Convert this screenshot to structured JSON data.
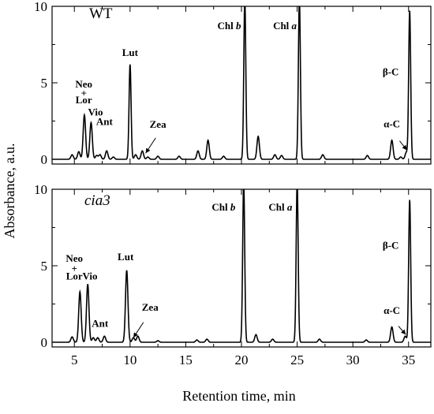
{
  "figure": {
    "y_axis_title": "Absorbance, a.u.",
    "x_axis_title": "Retention time, min"
  },
  "chart_data": [
    {
      "type": "line",
      "panel_label": "WT",
      "panel_label_italic": false,
      "xlim": [
        3,
        37
      ],
      "ylim": [
        0,
        10
      ],
      "x_ticks": [
        5,
        10,
        15,
        20,
        25,
        30,
        35
      ],
      "x_tick_labels": [],
      "y_ticks": [
        0,
        5,
        10
      ],
      "y_tick_labels": [
        "0",
        "5",
        "10"
      ],
      "series": [
        {
          "peaks": [
            {
              "x": 4.8,
              "y": 0.3
            },
            {
              "x": 5.4,
              "y": 0.5
            },
            {
              "x": 5.9,
              "y": 2.9
            },
            {
              "x": 6.5,
              "y": 2.4
            },
            {
              "x": 7.0,
              "y": 0.25
            },
            {
              "x": 7.3,
              "y": 0.3
            },
            {
              "x": 7.9,
              "y": 0.55
            },
            {
              "x": 8.5,
              "y": 0.15
            },
            {
              "x": 10.0,
              "y": 6.2
            },
            {
              "x": 10.5,
              "y": 0.3
            },
            {
              "x": 11.1,
              "y": 0.55
            },
            {
              "x": 11.6,
              "y": 0.15
            },
            {
              "x": 12.5,
              "y": 0.2
            },
            {
              "x": 14.4,
              "y": 0.2
            },
            {
              "x": 16.1,
              "y": 0.55
            },
            {
              "x": 17.0,
              "y": 1.25
            },
            {
              "x": 18.4,
              "y": 0.2
            },
            {
              "x": 20.3,
              "y": 10.5
            },
            {
              "x": 21.5,
              "y": 1.5
            },
            {
              "x": 23.0,
              "y": 0.3
            },
            {
              "x": 23.6,
              "y": 0.25
            },
            {
              "x": 25.2,
              "y": 10.5
            },
            {
              "x": 27.3,
              "y": 0.3
            },
            {
              "x": 31.3,
              "y": 0.25
            },
            {
              "x": 33.5,
              "y": 1.25
            },
            {
              "x": 34.3,
              "y": 0.15
            },
            {
              "x": 34.8,
              "y": 0.45
            },
            {
              "x": 35.1,
              "y": 9.7
            }
          ]
        }
      ],
      "annotations": [
        {
          "text": "Neo",
          "x": 5.85,
          "y": 4.7
        },
        {
          "text": "+",
          "x": 5.85,
          "y": 4.1
        },
        {
          "text": "Lor",
          "x": 5.85,
          "y": 3.65
        },
        {
          "text": "Vio",
          "x": 6.9,
          "y": 2.85
        },
        {
          "text": "Ant",
          "x": 7.7,
          "y": 2.25
        },
        {
          "text": "Lut",
          "x": 10.0,
          "y": 6.75
        },
        {
          "text": "Zea",
          "x": 12.5,
          "y": 2.05
        },
        {
          "text": "Chl b",
          "x": 18.9,
          "y": 8.5
        },
        {
          "text": "Chl a",
          "x": 23.9,
          "y": 8.5
        },
        {
          "text": "β-C",
          "x": 33.4,
          "y": 5.5
        },
        {
          "text": "α-C",
          "x": 33.5,
          "y": 2.1
        }
      ],
      "arrows": [
        {
          "from": [
            12.3,
            1.4
          ],
          "to": [
            11.4,
            0.4
          ]
        },
        {
          "from": [
            34.2,
            1.2
          ],
          "to": [
            34.85,
            0.6
          ]
        }
      ]
    },
    {
      "type": "line",
      "panel_label": "cia3",
      "panel_label_italic": true,
      "xlim": [
        3,
        37
      ],
      "ylim": [
        0,
        10
      ],
      "x_ticks": [
        5,
        10,
        15,
        20,
        25,
        30,
        35
      ],
      "x_tick_labels": [
        "5",
        "10",
        "15",
        "20",
        "25",
        "30",
        "35"
      ],
      "y_ticks": [
        0,
        5,
        10
      ],
      "y_tick_labels": [
        "0",
        "5",
        "10"
      ],
      "series": [
        {
          "peaks": [
            {
              "x": 4.8,
              "y": 0.35
            },
            {
              "x": 5.5,
              "y": 3.3
            },
            {
              "x": 6.2,
              "y": 3.8
            },
            {
              "x": 6.7,
              "y": 0.3
            },
            {
              "x": 7.1,
              "y": 0.3
            },
            {
              "x": 7.7,
              "y": 0.4
            },
            {
              "x": 9.7,
              "y": 4.7
            },
            {
              "x": 10.3,
              "y": 0.3
            },
            {
              "x": 10.7,
              "y": 0.4
            },
            {
              "x": 12.5,
              "y": 0.1
            },
            {
              "x": 16.0,
              "y": 0.15
            },
            {
              "x": 16.9,
              "y": 0.2
            },
            {
              "x": 20.2,
              "y": 10.5
            },
            {
              "x": 21.3,
              "y": 0.5
            },
            {
              "x": 22.8,
              "y": 0.2
            },
            {
              "x": 25.0,
              "y": 10.5
            },
            {
              "x": 27.0,
              "y": 0.2
            },
            {
              "x": 31.2,
              "y": 0.15
            },
            {
              "x": 33.5,
              "y": 1.0
            },
            {
              "x": 34.7,
              "y": 0.4
            },
            {
              "x": 35.1,
              "y": 9.3
            }
          ]
        }
      ],
      "annotations": [
        {
          "text": "Neo",
          "x": 5.0,
          "y": 5.25
        },
        {
          "text": "+",
          "x": 5.0,
          "y": 4.6
        },
        {
          "text": "Lor",
          "x": 5.0,
          "y": 4.1
        },
        {
          "text": "Vio",
          "x": 6.4,
          "y": 4.1
        },
        {
          "text": "Ant",
          "x": 7.3,
          "y": 1.0
        },
        {
          "text": "Lut",
          "x": 9.6,
          "y": 5.35
        },
        {
          "text": "Zea",
          "x": 11.8,
          "y": 2.05
        },
        {
          "text": "Chl b",
          "x": 18.4,
          "y": 8.6
        },
        {
          "text": "Chl a",
          "x": 23.5,
          "y": 8.6
        },
        {
          "text": "β-C",
          "x": 33.4,
          "y": 6.1
        },
        {
          "text": "α-C",
          "x": 33.5,
          "y": 1.85
        }
      ],
      "arrows": [
        {
          "from": [
            11.2,
            1.3
          ],
          "to": [
            10.3,
            0.3
          ]
        },
        {
          "from": [
            34.1,
            1.05
          ],
          "to": [
            34.75,
            0.5
          ]
        }
      ]
    }
  ]
}
